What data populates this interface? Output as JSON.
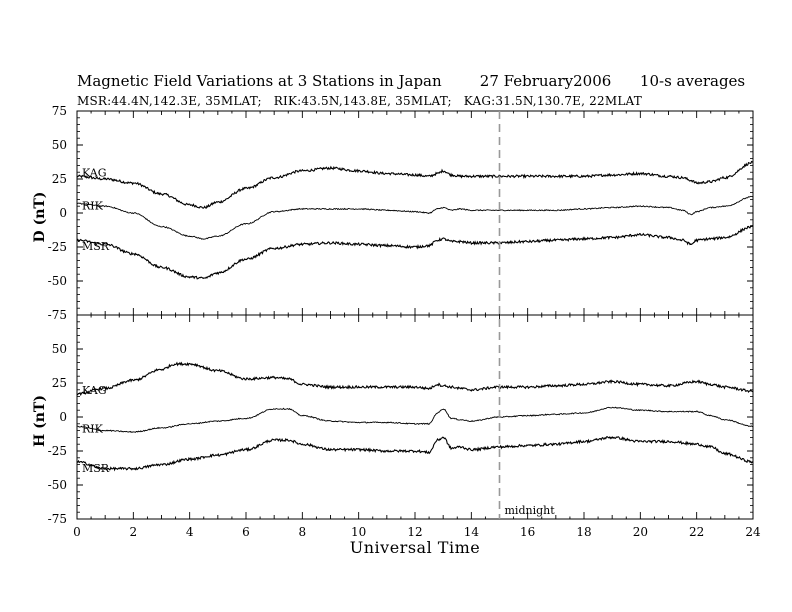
{
  "title": "Magnetic Field Variations at 3 Stations in Japan        27 February2006      10-s averages",
  "subtitle": "MSR:44.4N,142.3E, 35MLAT;   RIK:43.5N,143.8E, 35MLAT;   KAG:31.5N,130.7E, 22MLAT",
  "annotation": "midnight",
  "chart_data": [
    {
      "type": "line",
      "panel": "D",
      "ylabel": "D (nT)",
      "ylim": [
        -75,
        75
      ],
      "yticks": [
        75,
        50,
        25,
        0,
        -25,
        -50,
        -75
      ],
      "xlim": [
        0,
        24
      ],
      "xticks": [
        0,
        2,
        4,
        6,
        8,
        10,
        12,
        14,
        16,
        18,
        20,
        22,
        24
      ],
      "grid": false,
      "series": [
        {
          "name": "KAG",
          "color": "#000000",
          "x": [
            0,
            1,
            2,
            3,
            4,
            4.5,
            5,
            6,
            7,
            8,
            9,
            10,
            11,
            12,
            12.5,
            12.8,
            13,
            13.3,
            13.6,
            14,
            15,
            16,
            17,
            18,
            19,
            20,
            21,
            21.5,
            21.8,
            22,
            22.5,
            23,
            24
          ],
          "y": [
            27,
            25,
            22,
            14,
            6,
            4,
            8,
            18,
            26,
            31,
            33,
            31,
            29,
            28,
            27,
            29,
            31,
            28,
            27,
            27,
            27,
            27,
            27,
            27,
            28,
            29,
            27,
            26,
            24,
            22,
            23,
            26,
            37
          ]
        },
        {
          "name": "RIK",
          "color": "#000000",
          "x": [
            0,
            1,
            2,
            3,
            4,
            4.5,
            5,
            6,
            7,
            8,
            9,
            10,
            11,
            12,
            12.5,
            12.8,
            13,
            13.3,
            13.6,
            14,
            15,
            16,
            17,
            18,
            19,
            20,
            21,
            21.5,
            21.8,
            22,
            22.5,
            23,
            24
          ],
          "y": [
            7,
            5,
            0,
            -10,
            -17,
            -19,
            -17,
            -8,
            1,
            3,
            3,
            3,
            2,
            1,
            0,
            3,
            4,
            2,
            3,
            2,
            2,
            2,
            2,
            3,
            4,
            5,
            4,
            2,
            -1,
            1,
            4,
            5,
            12
          ]
        },
        {
          "name": "MSR",
          "color": "#000000",
          "x": [
            0,
            1,
            2,
            3,
            4,
            4.5,
            5,
            6,
            7,
            8,
            9,
            10,
            11,
            12,
            12.5,
            12.8,
            13,
            13.3,
            13.6,
            14,
            15,
            16,
            17,
            18,
            19,
            20,
            21,
            21.5,
            21.8,
            22,
            22.5,
            23,
            24
          ],
          "y": [
            -20,
            -23,
            -30,
            -40,
            -47,
            -48,
            -44,
            -34,
            -26,
            -23,
            -22,
            -23,
            -24,
            -25,
            -24,
            -20,
            -19,
            -21,
            -21,
            -22,
            -22,
            -21,
            -20,
            -19,
            -18,
            -16,
            -18,
            -20,
            -23,
            -20,
            -19,
            -18,
            -10
          ]
        }
      ]
    },
    {
      "type": "line",
      "panel": "H",
      "ylabel": "H (nT)",
      "ylim": [
        -75,
        75
      ],
      "yticks": [
        75,
        50,
        25,
        0,
        -25,
        -50,
        -75
      ],
      "xlim": [
        0,
        24
      ],
      "xticks": [
        0,
        2,
        4,
        6,
        8,
        10,
        12,
        14,
        16,
        18,
        20,
        22,
        24
      ],
      "xlabel": "Universal Time",
      "grid": false,
      "series": [
        {
          "name": "KAG",
          "color": "#000000",
          "x": [
            0,
            1,
            2,
            3,
            3.5,
            4,
            5,
            6,
            7,
            7.5,
            8,
            9,
            10,
            11,
            12,
            12.5,
            12.8,
            13,
            13.3,
            13.6,
            14,
            15,
            16,
            17,
            18,
            19,
            20,
            21,
            22,
            22.5,
            23,
            24
          ],
          "y": [
            17,
            21,
            27,
            35,
            39,
            39,
            34,
            28,
            29,
            28,
            24,
            22,
            22,
            22,
            22,
            21,
            24,
            23,
            22,
            21,
            20,
            22,
            22,
            23,
            24,
            26,
            24,
            23,
            26,
            24,
            22,
            19
          ]
        },
        {
          "name": "RIK",
          "color": "#000000",
          "x": [
            0,
            1,
            2,
            3,
            4,
            5,
            6,
            7,
            7.5,
            8,
            9,
            10,
            11,
            12,
            12.5,
            12.8,
            13,
            13.3,
            13.6,
            14,
            15,
            16,
            17,
            18,
            19,
            20,
            21,
            22,
            22.5,
            23,
            24
          ],
          "y": [
            -7,
            -10,
            -11,
            -8,
            -5,
            -3,
            -1,
            6,
            6,
            1,
            -3,
            -4,
            -4,
            -5,
            -5,
            3,
            6,
            -1,
            -2,
            -3,
            0,
            1,
            2,
            3,
            7,
            5,
            4,
            4,
            1,
            -2,
            -7
          ]
        },
        {
          "name": "MSR",
          "color": "#000000",
          "x": [
            0,
            1,
            2,
            3,
            4,
            5,
            6,
            7,
            7.5,
            8,
            9,
            10,
            11,
            12,
            12.5,
            12.8,
            13,
            13.3,
            13.6,
            14,
            15,
            16,
            17,
            18,
            19,
            20,
            21,
            22,
            22.5,
            23,
            24
          ],
          "y": [
            -33,
            -38,
            -38,
            -35,
            -31,
            -28,
            -24,
            -17,
            -17,
            -20,
            -24,
            -24,
            -25,
            -25,
            -26,
            -17,
            -15,
            -23,
            -22,
            -24,
            -22,
            -21,
            -20,
            -18,
            -15,
            -18,
            -18,
            -20,
            -22,
            -27,
            -33
          ]
        }
      ]
    }
  ]
}
